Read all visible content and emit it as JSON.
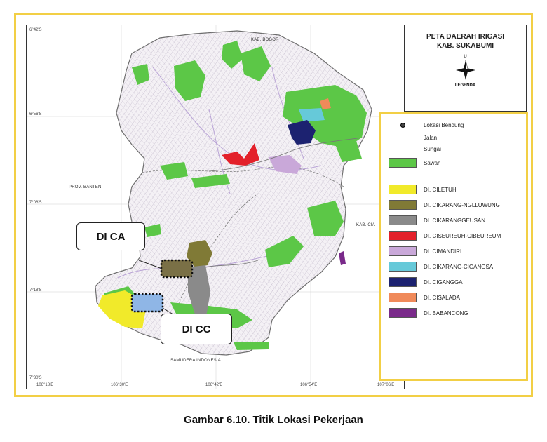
{
  "map": {
    "title_line1": "PETA DAERAH IRIGASI",
    "title_line2": "KAB. SUKABUMI",
    "north_label": "U",
    "legend_title": "LEGENDA",
    "place_labels": {
      "kab_bogor": "KAB. BOGOR",
      "prov_banten": "PROV. BANTEN",
      "kab_cianjur": "KAB. CIA",
      "samudera": "SAMUDERA INDONESIA"
    },
    "lat_labels": [
      "6°42'S",
      "6°56'S",
      "7°06'S",
      "7°18'S",
      "7°30'S"
    ],
    "lon_labels": [
      "106°18'E",
      "106°30'E",
      "106°42'E",
      "106°54'E",
      "107°06'E"
    ]
  },
  "legend": [
    {
      "symbol": "dot",
      "label": "Lokasi Bendung",
      "color": "#444444"
    },
    {
      "symbol": "line",
      "label": "Jalan",
      "color": "#999999"
    },
    {
      "symbol": "line",
      "label": "Sungai",
      "color": "#b9a3d6"
    },
    {
      "symbol": "box",
      "label": "Sawah",
      "color": "#5cc747"
    },
    {
      "symbol": "box",
      "label": "DI. CILETUH",
      "color": "#f1ea2a"
    },
    {
      "symbol": "box",
      "label": "DI. CIKARANG-NGLLUWUNG",
      "color": "#807a36"
    },
    {
      "symbol": "box",
      "label": "DI. CIKARANGGEUSAN",
      "color": "#8a8a8a"
    },
    {
      "symbol": "box",
      "label": "DI. CISEUREUH-CIBEUREUM",
      "color": "#e3202a"
    },
    {
      "symbol": "box",
      "label": "DI. CIMANDIRI",
      "color": "#c9a8d9"
    },
    {
      "symbol": "box",
      "label": "DI. CIKARANG-CIGANGSA",
      "color": "#66c9d9"
    },
    {
      "symbol": "box",
      "label": "DI. CIGANGGA",
      "color": "#1c2270"
    },
    {
      "symbol": "box",
      "label": "DI. CISALADA",
      "color": "#f08a5a"
    },
    {
      "symbol": "box",
      "label": "DI. BABANCONG",
      "color": "#7a2a8a"
    }
  ],
  "callouts": {
    "di_ca": "DI CA",
    "di_cc": "DI CC"
  },
  "caption": "Gambar 6.10. Titik Lokasi Pekerjaan"
}
